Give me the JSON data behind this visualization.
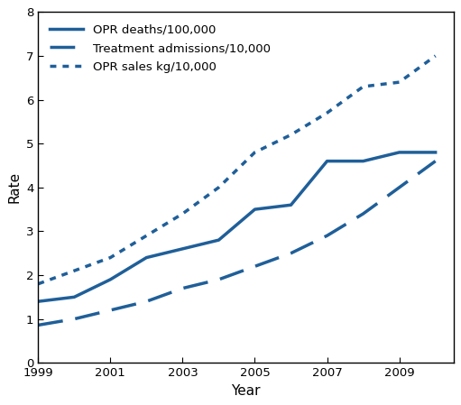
{
  "years": [
    1999,
    2000,
    2001,
    2002,
    2003,
    2004,
    2005,
    2006,
    2007,
    2008,
    2009,
    2010
  ],
  "opr_deaths": [
    1.4,
    1.5,
    1.9,
    2.4,
    2.6,
    2.8,
    3.5,
    3.6,
    4.6,
    4.6,
    4.8,
    4.8
  ],
  "treatment_admissions": [
    0.86,
    1.0,
    1.2,
    1.4,
    1.7,
    1.9,
    2.2,
    2.5,
    2.9,
    3.4,
    4.0,
    4.6
  ],
  "opr_sales": [
    1.8,
    2.1,
    2.4,
    2.9,
    3.4,
    4.0,
    4.8,
    5.2,
    5.7,
    6.3,
    6.4,
    7.0
  ],
  "line_color": "#1f5f99",
  "xlabel": "Year",
  "ylabel": "Rate",
  "ylim": [
    0,
    8
  ],
  "yticks": [
    0,
    1,
    2,
    3,
    4,
    5,
    6,
    7,
    8
  ],
  "xticks": [
    1999,
    2001,
    2003,
    2005,
    2007,
    2009
  ],
  "xlim": [
    1999,
    2010.5
  ],
  "legend_labels": [
    "OPR deaths/100,000",
    "Treatment admissions/10,000",
    "OPR sales kg/10,000"
  ],
  "linewidth": 2.5,
  "background_color": "#ffffff",
  "legend_fontsize": 9.5,
  "axis_fontsize": 11,
  "tick_fontsize": 9.5
}
